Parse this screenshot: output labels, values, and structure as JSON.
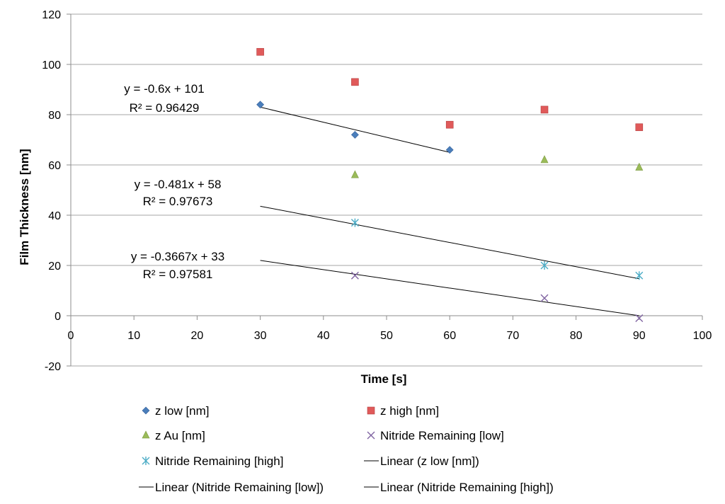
{
  "chart_data": {
    "type": "scatter",
    "xlabel": "Time [s]",
    "ylabel": "Film Thickness [nm]",
    "xlim": [
      0,
      100
    ],
    "ylim": [
      -20,
      120
    ],
    "x_ticks": [
      0,
      10,
      20,
      30,
      40,
      50,
      60,
      70,
      80,
      90,
      100
    ],
    "y_ticks": [
      -20,
      0,
      20,
      40,
      60,
      80,
      100,
      120
    ],
    "grid": "horizontal",
    "legend_position": "bottom",
    "series": [
      {
        "name": "z low [nm]",
        "marker": "diamond",
        "color": "#4a7ebb",
        "points": [
          [
            30,
            84
          ],
          [
            45,
            72
          ],
          [
            60,
            66
          ]
        ]
      },
      {
        "name": "z high [nm]",
        "marker": "square",
        "color": "#e05a5a",
        "points": [
          [
            30,
            105
          ],
          [
            45,
            93
          ],
          [
            60,
            76
          ],
          [
            75,
            82
          ],
          [
            90,
            75
          ]
        ]
      },
      {
        "name": "z Au [nm]",
        "marker": "triangle",
        "color": "#9bbb59",
        "points": [
          [
            45,
            56
          ],
          [
            75,
            62
          ],
          [
            90,
            59
          ]
        ]
      },
      {
        "name": "Nitride Remaining [low]",
        "marker": "x",
        "color": "#8064a2",
        "points": [
          [
            45,
            16
          ],
          [
            75,
            7
          ],
          [
            90,
            -1
          ]
        ]
      },
      {
        "name": "Nitride Remaining [high]",
        "marker": "star",
        "color": "#4bacc6",
        "points": [
          [
            45,
            37
          ],
          [
            75,
            20
          ],
          [
            90,
            16
          ]
        ]
      }
    ],
    "trendlines": [
      {
        "name": "Linear (z low [nm])",
        "slope": -0.6,
        "intercept": 101,
        "x_range": [
          30,
          60
        ],
        "equation": "y = -0.6x + 101",
        "r2": "R² = 0.96429"
      },
      {
        "name": "Linear (Nitride Remaining [low])",
        "slope": -0.3667,
        "intercept": 33,
        "x_range": [
          30,
          90
        ],
        "equation": "y = -0.3667x + 33",
        "r2": "R² = 0.97581"
      },
      {
        "name": "Linear (Nitride Remaining [high])",
        "slope": -0.481,
        "intercept": 58,
        "x_range": [
          30,
          90
        ],
        "equation": "y = -0.481x + 58",
        "r2": "R² = 0.97673"
      }
    ]
  }
}
